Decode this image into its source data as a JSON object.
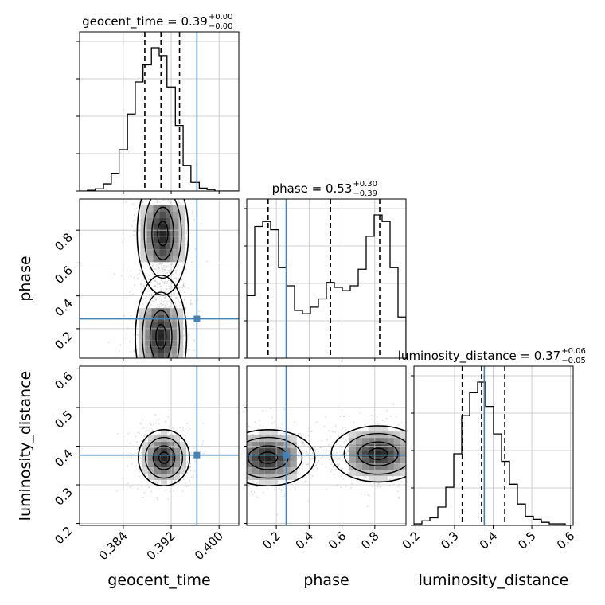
{
  "chart_data": {
    "type": "corner",
    "parameters": [
      "geocent_time",
      "phase",
      "luminosity_distance"
    ],
    "injection": {
      "geocent_time": 0.3963,
      "phase": 0.26,
      "luminosity_distance": 0.377
    },
    "colors": {
      "injection": "#4682b4",
      "hist": "#000000",
      "grid": "#c0c0c0",
      "samples": "#9a9a9a"
    },
    "ranges": {
      "geocent_time": [
        0.3767,
        0.4033
      ],
      "phase": [
        0.02,
        0.99
      ],
      "luminosity_distance": [
        0.195,
        0.607
      ]
    },
    "titles": [
      {
        "param": "geocent_time",
        "text": "geocent_time = 0.39",
        "sup": "+0.00",
        "sub": "−0.00"
      },
      {
        "param": "phase",
        "text": "phase = 0.53",
        "sup": "+0.30",
        "sub": "−0.39"
      },
      {
        "param": "luminosity_distance",
        "text": "luminosity_distance = 0.37",
        "sup": "+0.06",
        "sub": "−0.05"
      }
    ],
    "axis_labels": {
      "geocent_time": "geocent_time",
      "phase": "phase",
      "luminosity_distance": "luminosity_distance"
    },
    "ticks": {
      "geocent_time": [
        "0.384",
        "0.392",
        "0.400"
      ],
      "phase": [
        "0.2",
        "0.4",
        "0.6",
        "0.8"
      ],
      "luminosity_distance": [
        "0.2",
        "0.3",
        "0.4",
        "0.5",
        "0.6"
      ]
    },
    "quantiles": {
      "geocent_time": [
        0.3876,
        0.3903,
        0.3934
      ],
      "phase": [
        0.15,
        0.53,
        0.83
      ],
      "luminosity_distance": [
        0.32,
        0.37,
        0.43
      ]
    },
    "histograms": {
      "geocent_time": {
        "edges": [
          0.3767,
          0.378,
          0.3793,
          0.3807,
          0.382,
          0.3833,
          0.3847,
          0.386,
          0.3873,
          0.3887,
          0.39,
          0.3913,
          0.3927,
          0.394,
          0.3953,
          0.3967,
          0.398,
          0.3993,
          0.4007,
          0.402,
          0.4033
        ],
        "counts": [
          0,
          1,
          3,
          10,
          25,
          58,
          108,
          153,
          177,
          201,
          190,
          146,
          92,
          36,
          12,
          4,
          2,
          0,
          0,
          0
        ]
      },
      "phase": {
        "edges": [
          0.02,
          0.0685,
          0.117,
          0.1655,
          0.214,
          0.2625,
          0.311,
          0.3595,
          0.408,
          0.4565,
          0.505,
          0.5535,
          0.602,
          0.6505,
          0.699,
          0.7475,
          0.796,
          0.8445,
          0.893,
          0.9415,
          0.99
        ],
        "counts": [
          0.38,
          0.8,
          0.83,
          0.78,
          0.55,
          0.44,
          0.29,
          0.27,
          0.31,
          0.36,
          0.46,
          0.43,
          0.41,
          0.44,
          0.54,
          0.74,
          0.87,
          0.83,
          0.55,
          0.25
        ]
      },
      "luminosity_distance": {
        "edges": [
          0.195,
          0.2156,
          0.2362,
          0.2568,
          0.2774,
          0.298,
          0.3186,
          0.3392,
          0.3598,
          0.3804,
          0.401,
          0.4216,
          0.4422,
          0.4628,
          0.4834,
          0.504,
          0.5246,
          0.5452,
          0.5658,
          0.5864,
          0.607
        ],
        "counts": [
          0.01,
          0.03,
          0.05,
          0.12,
          0.25,
          0.47,
          0.72,
          0.87,
          0.94,
          0.78,
          0.6,
          0.42,
          0.27,
          0.14,
          0.06,
          0.04,
          0.02,
          0.01,
          0.01,
          0.0
        ]
      }
    },
    "contour_modes": [
      {
        "pair": [
          "geocent_time",
          "phase"
        ],
        "centers": [
          [
            0.3906,
            0.78
          ],
          [
            0.3903,
            0.15
          ]
        ]
      },
      {
        "pair": [
          "geocent_time",
          "luminosity_distance"
        ],
        "centers": [
          [
            0.3908,
            0.37
          ]
        ]
      },
      {
        "pair": [
          "phase",
          "luminosity_distance"
        ],
        "centers": [
          [
            0.15,
            0.37
          ],
          [
            0.82,
            0.38
          ]
        ]
      }
    ],
    "grid": true
  }
}
